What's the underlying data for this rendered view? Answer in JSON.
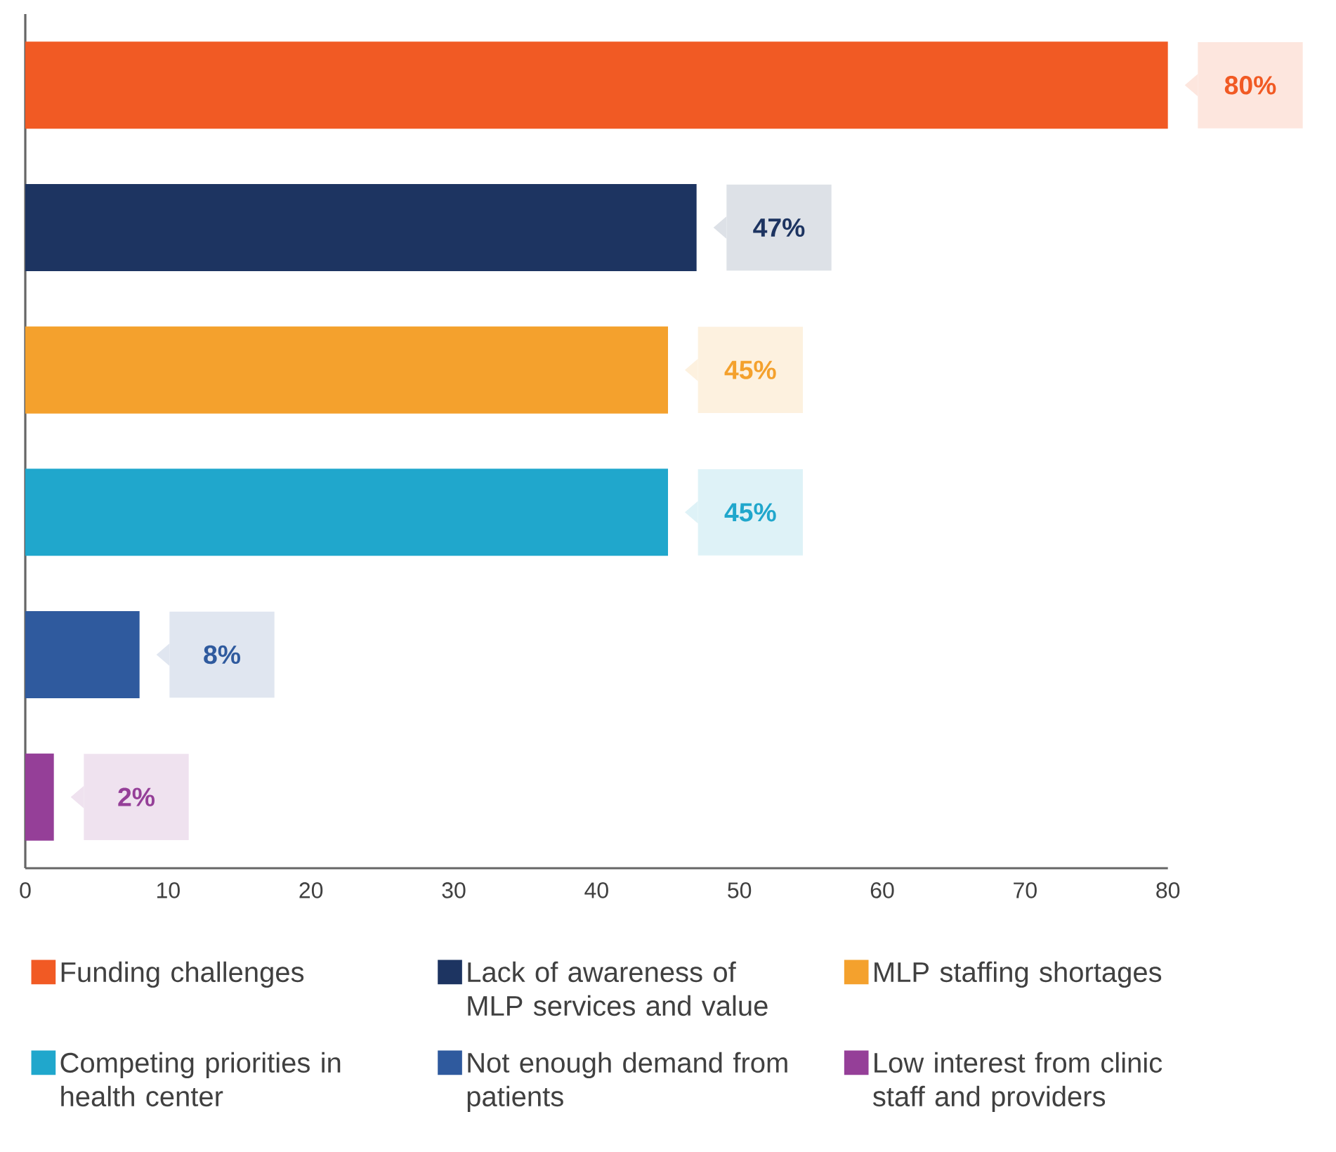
{
  "chart_data": {
    "type": "bar",
    "orientation": "horizontal",
    "categories": [
      null,
      null,
      null,
      null,
      null,
      null
    ],
    "series": [
      {
        "name": "Funding challenges",
        "color": "#f15a24",
        "values": [
          80,
          null,
          null,
          null,
          null,
          null
        ],
        "value_labels": [
          "80%",
          null,
          null,
          null,
          null,
          null
        ]
      },
      {
        "name": "Lack of awareness of MLP services and value",
        "color": "#1d3461",
        "values": [
          null,
          47,
          null,
          null,
          null,
          null
        ],
        "value_labels": [
          null,
          "47%",
          null,
          null,
          null,
          null
        ]
      },
      {
        "name": "MLP staffing shortages",
        "color": "#f4a12d",
        "values": [
          null,
          null,
          45,
          null,
          null,
          null
        ],
        "value_labels": [
          null,
          null,
          "45%",
          null,
          null,
          null
        ]
      },
      {
        "name": "Competing priorities in health center",
        "color": "#20a7cc",
        "values": [
          null,
          null,
          null,
          45,
          null,
          null
        ],
        "value_labels": [
          null,
          null,
          null,
          "45%",
          null,
          null
        ]
      },
      {
        "name": "Not enough demand from patients",
        "color": "#2f5a9e",
        "values": [
          null,
          null,
          null,
          null,
          8,
          null
        ],
        "value_labels": [
          null,
          null,
          null,
          null,
          "8%",
          null
        ]
      },
      {
        "name": "Low interest from clinic staff and providers",
        "color": "#953f98",
        "values": [
          null,
          null,
          null,
          null,
          null,
          2
        ],
        "value_labels": [
          null,
          null,
          null,
          null,
          null,
          "2%"
        ]
      }
    ],
    "xlim": [
      0,
      80
    ],
    "xticks": [
      0,
      10,
      20,
      30,
      40,
      50,
      60,
      70,
      80
    ],
    "legend": "bottom"
  }
}
